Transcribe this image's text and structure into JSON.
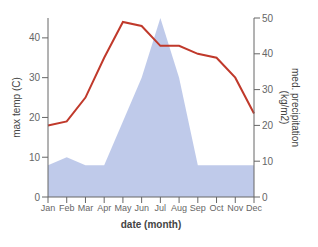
{
  "chart_data": {
    "type": "line",
    "categories": [
      "Jan",
      "Feb",
      "Mar",
      "Apr",
      "May",
      "Jun",
      "Jul",
      "Aug",
      "Sep",
      "Oct",
      "Nov",
      "Dec"
    ],
    "xlabel": "date (month)",
    "ylabel": "max temp (C)",
    "y2label": "med. precipitation\n(kg/m2)",
    "ylim": [
      0,
      45
    ],
    "yticks": [
      0,
      10,
      20,
      30,
      40
    ],
    "y2lim": [
      0,
      50
    ],
    "y2ticks": [
      0,
      10,
      20,
      30,
      40,
      50
    ],
    "grid": false,
    "series": [
      {
        "type": "area",
        "color": "#b8c4e8",
        "values": [
          8,
          10,
          8,
          8,
          19,
          30,
          45,
          30,
          8,
          8,
          8,
          8
        ]
      },
      {
        "type": "line",
        "color": "#c0392b",
        "values": [
          18,
          19,
          25,
          35,
          44,
          43,
          38,
          38,
          36,
          35,
          30,
          21
        ]
      }
    ]
  }
}
